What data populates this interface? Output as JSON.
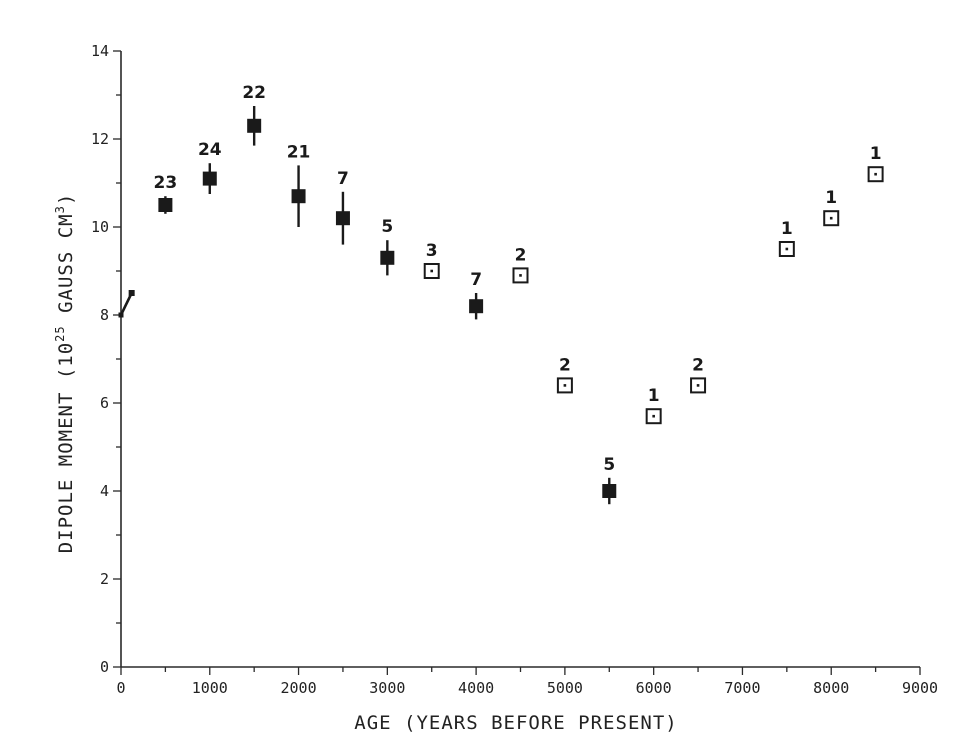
{
  "chart_data": {
    "type": "scatter",
    "title": "",
    "xlabel": "AGE (YEARS BEFORE PRESENT)",
    "ylabel_main": "DIPOLE MOMENT (10",
    "ylabel_exp": "25",
    "ylabel_unit": " GAUSS CM",
    "ylabel_unit_exp": "3",
    "ylabel_close": ")",
    "xlim": [
      0,
      9000
    ],
    "ylim": [
      0,
      14
    ],
    "x_ticks": [
      "0",
      "1000",
      "2000",
      "3000",
      "4000",
      "5000",
      "6000",
      "7000",
      "8000",
      "9000"
    ],
    "y_ticks": [
      "0",
      "2",
      "4",
      "6",
      "8",
      "10",
      "12",
      "14"
    ],
    "grid": false,
    "legend": "none",
    "present_segment": {
      "points": [
        [
          0,
          8.0
        ],
        [
          120,
          8.5
        ]
      ]
    },
    "series": [
      {
        "marker": "filled-square",
        "points": [
          {
            "x": 500,
            "y": 10.5,
            "err": 0.2,
            "count": "23"
          },
          {
            "x": 1000,
            "y": 11.1,
            "err": 0.35,
            "count": "24"
          },
          {
            "x": 1500,
            "y": 12.3,
            "err": 0.45,
            "count": "22"
          },
          {
            "x": 2000,
            "y": 10.7,
            "err": 0.7,
            "count": "21"
          },
          {
            "x": 2500,
            "y": 10.2,
            "err": 0.6,
            "count": "7"
          },
          {
            "x": 3000,
            "y": 9.3,
            "err": 0.4,
            "count": "5"
          },
          {
            "x": 4000,
            "y": 8.2,
            "err": 0.3,
            "count": "7"
          },
          {
            "x": 5500,
            "y": 4.0,
            "err": 0.3,
            "count": "5"
          }
        ]
      },
      {
        "marker": "open-square",
        "points": [
          {
            "x": 3500,
            "y": 9.0,
            "err": 0,
            "count": "3"
          },
          {
            "x": 4500,
            "y": 8.9,
            "err": 0,
            "count": "2"
          },
          {
            "x": 5000,
            "y": 6.4,
            "err": 0,
            "count": "2"
          },
          {
            "x": 6000,
            "y": 5.7,
            "err": 0,
            "count": "1"
          },
          {
            "x": 6500,
            "y": 6.4,
            "err": 0,
            "count": "2"
          },
          {
            "x": 7500,
            "y": 9.5,
            "err": 0,
            "count": "1"
          },
          {
            "x": 8000,
            "y": 10.2,
            "err": 0,
            "count": "1"
          },
          {
            "x": 8500,
            "y": 11.2,
            "err": 0,
            "count": "1"
          }
        ]
      }
    ],
    "colors": {
      "ink": "#1a1a1a",
      "background": "#ffffff"
    }
  }
}
